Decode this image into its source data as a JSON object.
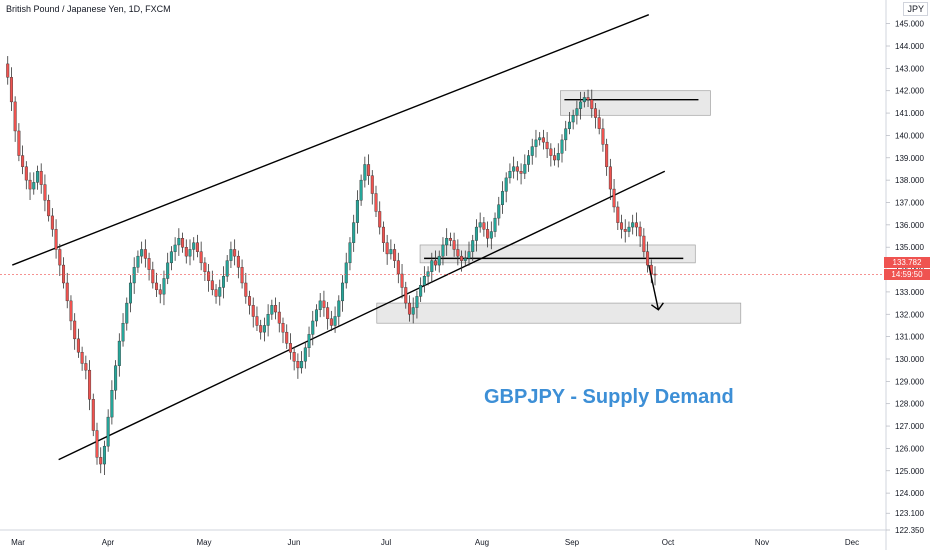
{
  "header": {
    "symbol_title": "British Pound / Japanese Yen, 1D, FXCM",
    "currency": "JPY"
  },
  "annotation": {
    "text": "GBPJPY - Supply Demand"
  },
  "price_tags": {
    "last_price": "133.782",
    "countdown": "14:59:50"
  },
  "colors": {
    "up_candle": "#26a69a",
    "down_candle": "#ef5350",
    "zone_fill": "#e8e8e8",
    "zone_border": "#a0a0a0",
    "trendline": "#000000",
    "annotation_text": "#3d8fd6",
    "price_tag": "#ef5350",
    "axis_text": "#131722"
  },
  "chart_data": {
    "type": "candlestick",
    "title": "British Pound / Japanese Yen, 1D, FXCM",
    "x_ticks": [
      "Mar",
      "Apr",
      "May",
      "Jun",
      "Jul",
      "Aug",
      "Sep",
      "Oct",
      "Nov",
      "Dec"
    ],
    "y_ticks": [
      122.35,
      123.1,
      124.0,
      125.0,
      126.0,
      127.0,
      128.0,
      129.0,
      130.0,
      131.0,
      132.0,
      133.0,
      134.0,
      135.0,
      136.0,
      137.0,
      138.0,
      139.0,
      140.0,
      141.0,
      142.0,
      143.0,
      144.0,
      145.0
    ],
    "y_tick_labels": [
      "122.350",
      "123.100",
      "124.000",
      "125.000",
      "126.000",
      "127.000",
      "128.000",
      "129.000",
      "130.000",
      "131.000",
      "132.000",
      "133.000",
      "134.000",
      "135.000",
      "136.000",
      "137.000",
      "138.000",
      "139.000",
      "140.000",
      "141.000",
      "142.000",
      "143.000",
      "144.000",
      "145.000"
    ],
    "ylim": [
      122.35,
      146.0
    ],
    "last_price": 133.782,
    "closes": [
      143.2,
      142.6,
      141.5,
      140.2,
      139.1,
      138.6,
      138.0,
      137.6,
      137.9,
      138.4,
      137.8,
      137.1,
      136.4,
      135.8,
      134.9,
      134.2,
      133.4,
      132.6,
      131.7,
      130.9,
      130.3,
      129.8,
      129.5,
      128.2,
      126.8,
      125.6,
      125.3,
      126.1,
      127.4,
      128.6,
      129.7,
      130.8,
      131.6,
      132.5,
      133.4,
      134.1,
      134.6,
      134.9,
      134.5,
      134.0,
      133.4,
      133.1,
      132.9,
      133.6,
      134.3,
      134.8,
      135.1,
      135.4,
      135.0,
      134.6,
      134.9,
      135.2,
      134.8,
      134.3,
      133.9,
      133.5,
      133.1,
      132.8,
      133.2,
      133.7,
      134.4,
      134.9,
      134.6,
      134.1,
      133.4,
      132.8,
      132.4,
      131.9,
      131.5,
      131.2,
      131.5,
      132.0,
      132.4,
      132.1,
      131.6,
      131.2,
      130.7,
      130.3,
      129.9,
      129.6,
      129.9,
      130.5,
      131.1,
      131.7,
      132.2,
      132.6,
      132.3,
      131.8,
      131.5,
      131.9,
      132.6,
      133.4,
      134.3,
      135.2,
      136.1,
      137.1,
      138.0,
      138.7,
      138.2,
      137.4,
      136.6,
      135.9,
      135.2,
      134.7,
      134.9,
      134.4,
      133.8,
      133.2,
      132.5,
      132.0,
      132.3,
      132.8,
      133.3,
      133.7,
      133.9,
      134.4,
      134.2,
      134.6,
      135.1,
      135.4,
      135.3,
      134.9,
      134.6,
      134.4,
      134.5,
      134.8,
      135.3,
      135.9,
      136.1,
      135.8,
      135.4,
      135.7,
      136.3,
      136.9,
      137.5,
      138.1,
      138.4,
      138.6,
      138.4,
      138.3,
      138.7,
      139.1,
      139.5,
      139.8,
      139.9,
      139.7,
      139.4,
      139.1,
      138.9,
      139.2,
      139.8,
      140.3,
      140.6,
      140.9,
      141.2,
      141.5,
      141.7,
      141.6,
      141.2,
      140.8,
      140.3,
      139.6,
      138.6,
      137.6,
      136.8,
      136.1,
      135.8,
      135.7,
      135.9,
      136.1,
      135.9,
      135.5,
      134.8,
      134.2,
      133.8,
      133.78
    ],
    "trendlines": [
      {
        "from": [
          "Feb 24",
          134.2
        ],
        "to": [
          "Sep 25",
          145.4
        ]
      },
      {
        "from": [
          "Mar 15",
          125.5
        ],
        "to": [
          "Sep 30",
          138.4
        ]
      }
    ],
    "zones": [
      {
        "label": "",
        "x_range": [
          "Aug 28",
          "Oct 15"
        ],
        "y_range": [
          140.9,
          142.0
        ],
        "line_price": 141.6
      },
      {
        "label": "",
        "x_range": [
          "Jul 12",
          "Oct 10"
        ],
        "y_range": [
          134.3,
          135.1
        ],
        "line_price": 134.5
      },
      {
        "label": "",
        "x_range": [
          "Jun 28",
          "Oct 25"
        ],
        "y_range": [
          131.6,
          132.5
        ]
      }
    ],
    "arrow": {
      "from": [
        "Sep 25",
        134.2
      ],
      "to": [
        "Sep 28",
        132.2
      ]
    },
    "grid": false,
    "legend": "none"
  }
}
